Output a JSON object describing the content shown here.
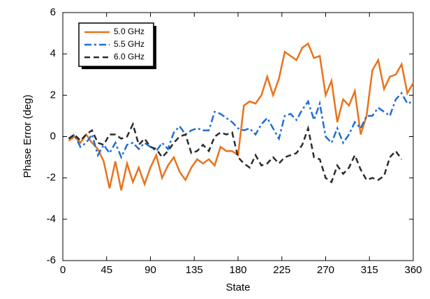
{
  "chart_data": {
    "type": "line",
    "xlabel": "State",
    "ylabel": "Phase Error (deg)",
    "x": [
      6,
      12,
      18,
      24,
      30,
      36,
      42,
      48,
      54,
      60,
      66,
      72,
      78,
      84,
      90,
      96,
      102,
      108,
      114,
      120,
      126,
      132,
      138,
      144,
      150,
      156,
      162,
      168,
      174,
      180,
      186,
      192,
      198,
      204,
      210,
      216,
      222,
      228,
      234,
      240,
      246,
      252,
      258,
      264,
      270,
      276,
      282,
      288,
      294,
      300,
      306,
      312,
      318,
      324,
      330,
      336,
      342,
      348,
      354,
      360
    ],
    "series": [
      {
        "name": "5.0 GHz",
        "color": "#e8731c",
        "dash": "solid",
        "values": [
          -0.2,
          0.0,
          -0.3,
          0.1,
          -0.3,
          -0.6,
          -1.2,
          -2.5,
          -1.2,
          -2.6,
          -1.3,
          -2.2,
          -1.5,
          -2.3,
          -1.5,
          -0.9,
          -2.0,
          -1.4,
          -1.0,
          -1.7,
          -2.1,
          -1.5,
          -1.1,
          -1.3,
          -1.1,
          -1.4,
          -0.5,
          -0.7,
          -0.7,
          -0.9,
          1.5,
          1.7,
          1.6,
          2.0,
          2.9,
          2.0,
          2.8,
          4.1,
          3.9,
          3.7,
          4.3,
          4.5,
          3.8,
          3.9,
          2.0,
          2.7,
          0.7,
          1.8,
          1.5,
          2.2,
          0.1,
          1.0,
          3.2,
          3.7,
          2.3,
          2.9,
          3.0,
          3.5,
          2.1,
          2.6
        ]
      },
      {
        "name": "5.5 GHz",
        "color": "#1f6fd6",
        "dash": "dashdot",
        "values": [
          -0.1,
          0.1,
          -0.5,
          -0.3,
          0.1,
          -0.9,
          -0.4,
          -0.8,
          -0.3,
          -1.0,
          -0.4,
          -0.3,
          -0.6,
          -0.3,
          -0.5,
          -0.7,
          -0.3,
          -0.6,
          0.2,
          0.5,
          0.1,
          0.3,
          0.4,
          0.3,
          0.3,
          1.2,
          1.1,
          0.9,
          0.7,
          0.4,
          0.3,
          0.4,
          0.1,
          0.6,
          0.9,
          0.4,
          -0.1,
          1.0,
          1.1,
          0.8,
          1.3,
          1.7,
          0.8,
          1.6,
          0.0,
          -0.3,
          0.4,
          -0.3,
          0.1,
          0.7,
          0.4,
          1.0,
          1.0,
          1.4,
          1.2,
          1.0,
          1.8,
          2.1,
          1.6,
          1.7
        ]
      },
      {
        "name": "6.0 GHz",
        "color": "#2b2b2b",
        "dash": "dashed",
        "values": [
          -0.1,
          0.1,
          -0.2,
          0.1,
          0.3,
          -0.3,
          -0.4,
          0.1,
          0.1,
          -0.1,
          0.0,
          0.6,
          -0.4,
          -0.1,
          -0.5,
          -0.6,
          -1.0,
          -0.7,
          -0.3,
          0.0,
          0.1,
          -0.8,
          -0.7,
          -0.4,
          -0.7,
          0.0,
          0.2,
          0.1,
          0.2,
          -1.0,
          -1.3,
          -1.5,
          -0.9,
          -1.4,
          -1.3,
          -1.0,
          -1.3,
          -1.0,
          -0.9,
          -0.8,
          -0.4,
          0.4,
          -1.0,
          -1.1,
          -2.0,
          -2.2,
          -1.4,
          -1.8,
          -1.5,
          -0.9,
          -1.6,
          -2.1,
          -2.0,
          -2.1,
          -1.9,
          -1.0,
          -0.7,
          -1.1,
          null,
          null
        ]
      }
    ],
    "xlim": [
      0,
      360
    ],
    "xticks": [
      0,
      45,
      90,
      135,
      180,
      225,
      270,
      315,
      360
    ],
    "ylim": [
      -6,
      6
    ],
    "yticks": [
      -6,
      -4,
      -2,
      0,
      2,
      4,
      6
    ],
    "grid": false,
    "legend": "upper left"
  }
}
